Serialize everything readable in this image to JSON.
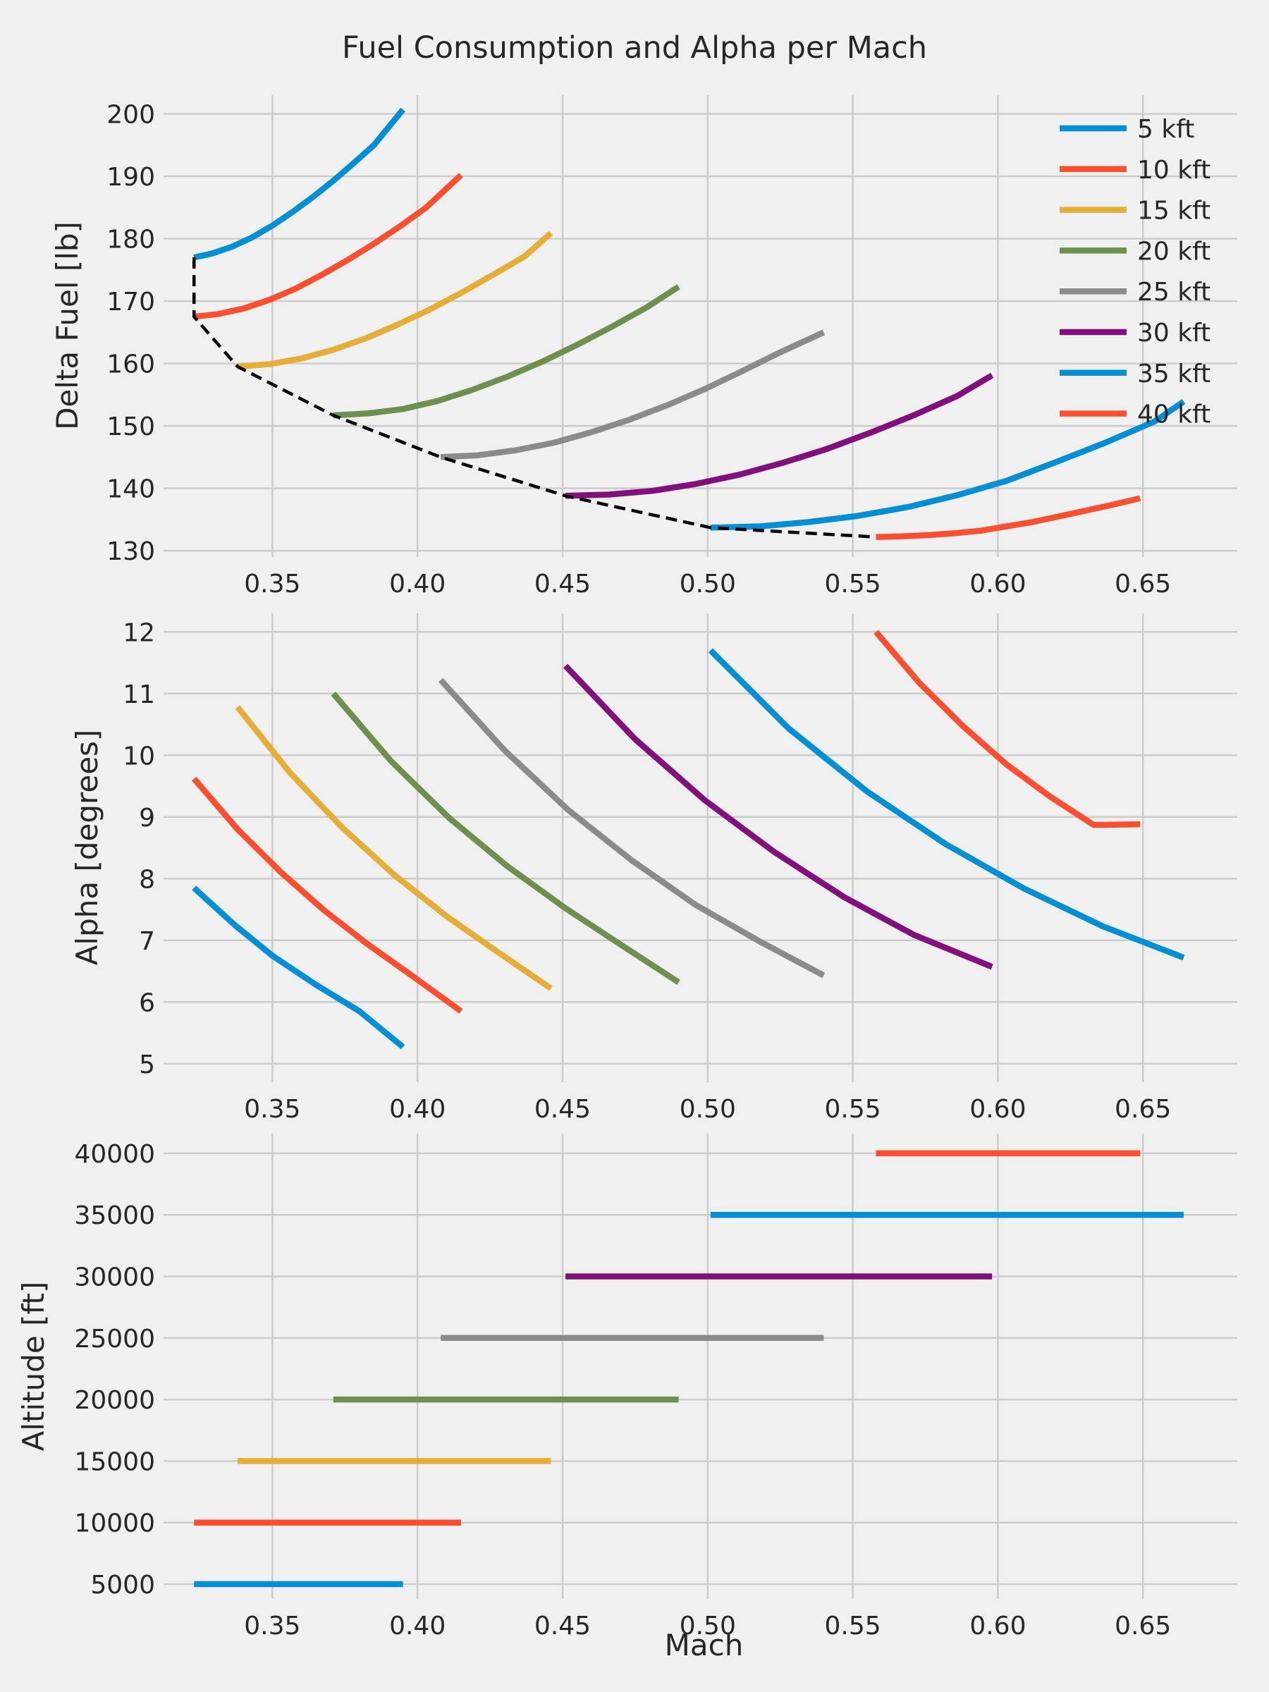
{
  "title": "Fuel Consumption and Alpha per Mach",
  "colors": [
    "#008fd5",
    "#fc4f30",
    "#e5ae38",
    "#6d904f",
    "#8b8b8b",
    "#810f7c",
    "#008fd5",
    "#fc4f30"
  ],
  "chart_data": [
    {
      "type": "line",
      "ylabel": "Delta Fuel [lb]",
      "xlabel": "",
      "xlim": [
        0.3125,
        0.6825
      ],
      "ylim": [
        129,
        203
      ],
      "xticks": [
        0.35,
        0.4,
        0.45,
        0.5,
        0.55,
        0.6,
        0.65
      ],
      "xtick_labels": [
        "0.35",
        "0.40",
        "0.45",
        "0.50",
        "0.55",
        "0.60",
        "0.65"
      ],
      "yticks": [
        130,
        140,
        150,
        160,
        170,
        180,
        190,
        200
      ],
      "ytick_labels": [
        "130",
        "140",
        "150",
        "160",
        "170",
        "180",
        "190",
        "200"
      ],
      "grid": true,
      "legend": "top-right",
      "series": [
        {
          "name": "5 kft",
          "x": [
            0.323,
            0.329,
            0.336,
            0.343,
            0.35,
            0.357,
            0.364,
            0.371,
            0.378,
            0.385,
            0.395
          ],
          "y": [
            177.0,
            177.6,
            178.7,
            180.2,
            182.1,
            184.3,
            186.7,
            189.3,
            192.1,
            195.0,
            200.7
          ]
        },
        {
          "name": "10 kft",
          "x": [
            0.323,
            0.331,
            0.34,
            0.349,
            0.358,
            0.367,
            0.376,
            0.385,
            0.394,
            0.403,
            0.415
          ],
          "y": [
            167.5,
            167.9,
            168.8,
            170.2,
            172.0,
            174.2,
            176.6,
            179.2,
            182.0,
            185.0,
            190.2
          ]
        },
        {
          "name": "15 kft",
          "x": [
            0.338,
            0.349,
            0.36,
            0.371,
            0.382,
            0.393,
            0.404,
            0.415,
            0.426,
            0.437,
            0.446
          ],
          "y": [
            159.5,
            159.9,
            160.8,
            162.2,
            164.0,
            166.2,
            168.6,
            171.3,
            174.2,
            177.2,
            180.9
          ]
        },
        {
          "name": "20 kft",
          "x": [
            0.371,
            0.383,
            0.395,
            0.407,
            0.419,
            0.431,
            0.443,
            0.455,
            0.467,
            0.479,
            0.49
          ],
          "y": [
            151.7,
            152.0,
            152.7,
            154.0,
            155.8,
            157.9,
            160.3,
            163.0,
            165.9,
            169.0,
            172.3
          ]
        },
        {
          "name": "25 kft",
          "x": [
            0.408,
            0.421,
            0.434,
            0.447,
            0.46,
            0.473,
            0.486,
            0.499,
            0.512,
            0.525,
            0.54
          ],
          "y": [
            145.0,
            145.3,
            146.1,
            147.3,
            149.0,
            151.0,
            153.3,
            155.9,
            158.8,
            161.8,
            165.0
          ]
        },
        {
          "name": "30 kft",
          "x": [
            0.451,
            0.466,
            0.481,
            0.496,
            0.511,
            0.526,
            0.541,
            0.556,
            0.571,
            0.586,
            0.598
          ],
          "y": [
            138.8,
            139.0,
            139.6,
            140.7,
            142.2,
            144.1,
            146.3,
            148.9,
            151.7,
            154.8,
            158.1
          ]
        },
        {
          "name": "35 kft",
          "x": [
            0.501,
            0.518,
            0.535,
            0.552,
            0.569,
            0.586,
            0.603,
            0.62,
            0.637,
            0.654,
            0.664
          ],
          "y": [
            133.7,
            133.9,
            134.6,
            135.6,
            137.0,
            138.9,
            141.2,
            144.2,
            147.3,
            150.7,
            153.9
          ]
        },
        {
          "name": "40 kft",
          "x": [
            0.558,
            0.567,
            0.576,
            0.585,
            0.594,
            0.603,
            0.612,
            0.621,
            0.63,
            0.639,
            0.649
          ],
          "y": [
            132.2,
            132.3,
            132.5,
            132.8,
            133.2,
            133.9,
            134.6,
            135.5,
            136.4,
            137.3,
            138.4
          ]
        }
      ],
      "envelope": {
        "x": [
          0.323,
          0.323,
          0.338,
          0.371,
          0.408,
          0.451,
          0.501,
          0.558
        ],
        "y": [
          177.0,
          167.5,
          159.5,
          151.7,
          145.0,
          138.8,
          133.7,
          132.2
        ]
      }
    },
    {
      "type": "line",
      "ylabel": "Alpha [degrees]",
      "xlabel": "",
      "xlim": [
        0.3125,
        0.6825
      ],
      "ylim": [
        4.7,
        12.3
      ],
      "xticks": [
        0.35,
        0.4,
        0.45,
        0.5,
        0.55,
        0.6,
        0.65
      ],
      "xtick_labels": [
        "0.35",
        "0.40",
        "0.45",
        "0.50",
        "0.55",
        "0.60",
        "0.65"
      ],
      "yticks": [
        5,
        6,
        7,
        8,
        9,
        10,
        11,
        12
      ],
      "ytick_labels": [
        "5",
        "6",
        "7",
        "8",
        "9",
        "10",
        "11",
        "12"
      ],
      "grid": true,
      "series": [
        {
          "name": "5 kft",
          "x": [
            0.323,
            0.337,
            0.35,
            0.365,
            0.38,
            0.395
          ],
          "y": [
            7.85,
            7.25,
            6.75,
            6.28,
            5.85,
            5.27
          ]
        },
        {
          "name": "10 kft",
          "x": [
            0.323,
            0.338,
            0.353,
            0.368,
            0.383,
            0.398,
            0.415
          ],
          "y": [
            9.62,
            8.8,
            8.1,
            7.48,
            6.93,
            6.43,
            5.85
          ]
        },
        {
          "name": "15 kft",
          "x": [
            0.338,
            0.356,
            0.374,
            0.392,
            0.41,
            0.428,
            0.446
          ],
          "y": [
            10.78,
            9.72,
            8.83,
            8.06,
            7.39,
            6.8,
            6.22
          ]
        },
        {
          "name": "20 kft",
          "x": [
            0.371,
            0.391,
            0.411,
            0.431,
            0.451,
            0.471,
            0.49
          ],
          "y": [
            11.0,
            9.9,
            8.98,
            8.2,
            7.52,
            6.9,
            6.32
          ]
        },
        {
          "name": "25 kft",
          "x": [
            0.408,
            0.43,
            0.452,
            0.474,
            0.496,
            0.518,
            0.54
          ],
          "y": [
            11.22,
            10.08,
            9.11,
            8.29,
            7.57,
            6.98,
            6.43
          ]
        },
        {
          "name": "30 kft",
          "x": [
            0.451,
            0.475,
            0.499,
            0.523,
            0.547,
            0.571,
            0.598
          ],
          "y": [
            11.45,
            10.26,
            9.27,
            8.43,
            7.7,
            7.09,
            6.57
          ]
        },
        {
          "name": "35 kft",
          "x": [
            0.501,
            0.528,
            0.555,
            0.582,
            0.609,
            0.636,
            0.664
          ],
          "y": [
            11.7,
            10.43,
            9.41,
            8.56,
            7.84,
            7.23,
            6.72
          ]
        },
        {
          "name": "40 kft",
          "x": [
            0.558,
            0.573,
            0.588,
            0.603,
            0.618,
            0.633,
            0.649
          ],
          "y": [
            12.0,
            11.17,
            10.47,
            9.85,
            9.33,
            8.87,
            8.88
          ]
        }
      ]
    },
    {
      "type": "line",
      "ylabel": "Altitude [ft]",
      "xlabel": "Mach",
      "xlim": [
        0.3125,
        0.6825
      ],
      "ylim": [
        3800,
        41600
      ],
      "xticks": [
        0.35,
        0.4,
        0.45,
        0.5,
        0.55,
        0.6,
        0.65
      ],
      "xtick_labels": [
        "0.35",
        "0.40",
        "0.45",
        "0.50",
        "0.55",
        "0.60",
        "0.65"
      ],
      "yticks": [
        5000,
        10000,
        15000,
        20000,
        25000,
        30000,
        35000,
        40000
      ],
      "ytick_labels": [
        "5000",
        "10000",
        "15000",
        "20000",
        "25000",
        "30000",
        "35000",
        "40000"
      ],
      "grid": true,
      "series": [
        {
          "name": "5 kft",
          "x": [
            0.323,
            0.395
          ],
          "y": [
            5000,
            5000
          ]
        },
        {
          "name": "10 kft",
          "x": [
            0.323,
            0.415
          ],
          "y": [
            10000,
            10000
          ]
        },
        {
          "name": "15 kft",
          "x": [
            0.338,
            0.446
          ],
          "y": [
            15000,
            15000
          ]
        },
        {
          "name": "20 kft",
          "x": [
            0.371,
            0.49
          ],
          "y": [
            20000,
            20000
          ]
        },
        {
          "name": "25 kft",
          "x": [
            0.408,
            0.54
          ],
          "y": [
            25000,
            25000
          ]
        },
        {
          "name": "30 kft",
          "x": [
            0.451,
            0.598
          ],
          "y": [
            30000,
            30000
          ]
        },
        {
          "name": "35 kft",
          "x": [
            0.501,
            0.664
          ],
          "y": [
            35000,
            35000
          ]
        },
        {
          "name": "40 kft",
          "x": [
            0.558,
            0.649
          ],
          "y": [
            40000,
            40000
          ]
        }
      ]
    }
  ]
}
